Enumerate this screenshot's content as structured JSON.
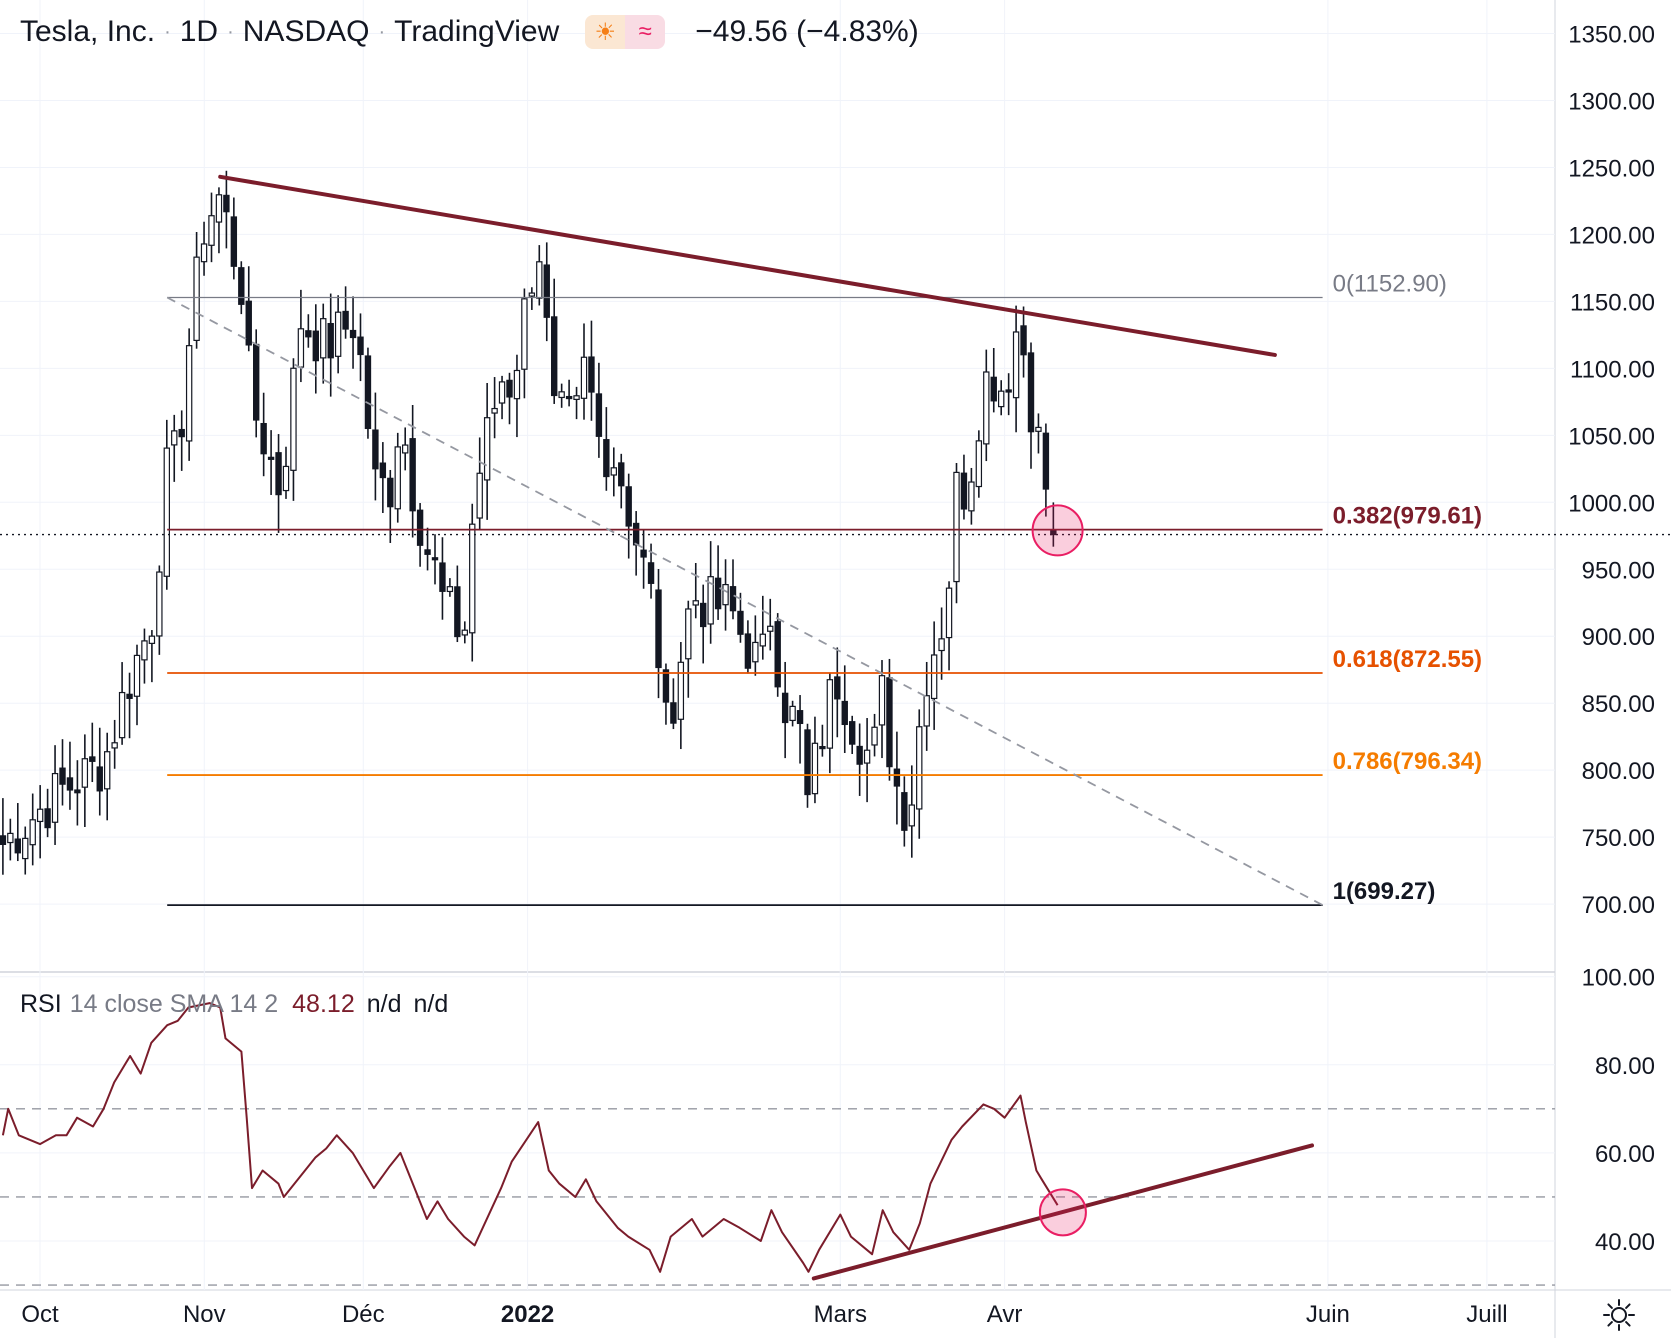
{
  "header": {
    "symbol": "Tesla, Inc.",
    "interval": "1D",
    "exchange": "NASDAQ",
    "source": "TradingView",
    "badge_icons": [
      "sun-icon",
      "wave-icon"
    ],
    "change": "−49.56 (−4.83%)"
  },
  "rsi": {
    "label": "RSI",
    "params": "14 close SMA 14 2",
    "value": "48.12",
    "na1": "n/d",
    "na2": "n/d"
  },
  "colors": {
    "candle": "#131722",
    "trendline": "#7b1d2b",
    "fib_0": "#787b86",
    "fib_382": "#7b1d2b",
    "fib_618": "#e65100",
    "fib_786": "#f57c00",
    "fib_1": "#131722",
    "highlight": "#e91e63",
    "dashed": "#9598a1"
  },
  "chart_data": [
    {
      "type": "candlestick",
      "y_axis": {
        "min": 650,
        "max": 1380,
        "ticks": [
          "700.00",
          "750.00",
          "800.00",
          "850.00",
          "900.00",
          "950.00",
          "1000.00",
          "1050.00",
          "1100.00",
          "1150.00",
          "1200.00",
          "1250.00",
          "1300.00",
          "1350.00"
        ],
        "position": "right"
      },
      "x_axis": {
        "labels": [
          "Oct",
          "Nov",
          "Déc",
          "2022",
          "Mars",
          "Avr",
          "Juin",
          "Juill"
        ],
        "label_dates": [
          "2021-10-01",
          "2021-11-01",
          "2021-12-01",
          "2022-01-01",
          "2022-03-01",
          "2022-04-01",
          "2022-06-01",
          "2022-07-01"
        ]
      },
      "last_close": 975.9,
      "anchors": [
        [
          "2021-09-24",
          745
        ],
        [
          "2021-10-05",
          785
        ],
        [
          "2021-10-13",
          805
        ],
        [
          "2021-10-18",
          870
        ],
        [
          "2021-10-22",
          910
        ],
        [
          "2021-10-25",
          1024
        ],
        [
          "2021-10-27",
          1037
        ],
        [
          "2021-10-29",
          1115
        ],
        [
          "2021-11-01",
          1208
        ],
        [
          "2021-11-04",
          1229
        ],
        [
          "2021-11-08",
          1162
        ],
        [
          "2021-11-10",
          1067
        ],
        [
          "2021-11-11",
          1063
        ],
        [
          "2021-11-15",
          1013
        ],
        [
          "2021-11-17",
          1054
        ],
        [
          "2021-11-19",
          1137
        ],
        [
          "2021-11-24",
          1116
        ],
        [
          "2021-11-29",
          1136
        ],
        [
          "2021-12-01",
          1095
        ],
        [
          "2021-12-03",
          1014
        ],
        [
          "2021-12-06",
          1010
        ],
        [
          "2021-12-08",
          1068
        ],
        [
          "2021-12-10",
          1017
        ],
        [
          "2021-12-13",
          966
        ],
        [
          "2021-12-14",
          958
        ],
        [
          "2021-12-16",
          926
        ],
        [
          "2021-12-20",
          899
        ],
        [
          "2021-12-22",
          1008
        ],
        [
          "2021-12-27",
          1093
        ],
        [
          "2021-12-29",
          1088
        ],
        [
          "2022-01-03",
          1199
        ],
        [
          "2022-01-06",
          1064
        ],
        [
          "2022-01-10",
          1058
        ],
        [
          "2022-01-12",
          1106
        ],
        [
          "2022-01-14",
          1049
        ],
        [
          "2022-01-18",
          1030
        ],
        [
          "2022-01-20",
          996
        ],
        [
          "2022-01-25",
          918
        ],
        [
          "2022-01-27",
          829
        ],
        [
          "2022-01-28",
          846
        ],
        [
          "2022-02-01",
          931
        ],
        [
          "2022-02-04",
          923
        ],
        [
          "2022-02-08",
          922
        ],
        [
          "2022-02-10",
          904
        ],
        [
          "2022-02-14",
          875
        ],
        [
          "2022-02-16",
          923
        ],
        [
          "2022-02-18",
          856
        ],
        [
          "2022-02-22",
          821
        ],
        [
          "2022-02-23",
          764
        ],
        [
          "2022-02-24",
          800
        ],
        [
          "2022-02-28",
          870
        ],
        [
          "2022-03-01",
          865
        ],
        [
          "2022-03-03",
          840
        ],
        [
          "2022-03-07",
          805
        ],
        [
          "2022-03-09",
          859
        ],
        [
          "2022-03-11",
          795
        ],
        [
          "2022-03-14",
          766
        ],
        [
          "2022-03-15",
          802
        ],
        [
          "2022-03-17",
          871
        ],
        [
          "2022-03-21",
          921
        ],
        [
          "2022-03-23",
          1013
        ],
        [
          "2022-03-25",
          1010
        ],
        [
          "2022-03-28",
          1091
        ],
        [
          "2022-03-30",
          1094
        ],
        [
          "2022-04-01",
          1084
        ],
        [
          "2022-04-04",
          1145
        ],
        [
          "2022-04-05",
          1091
        ],
        [
          "2022-04-07",
          1057
        ],
        [
          "2022-04-08",
          1025
        ],
        [
          "2022-04-11",
          975.9
        ]
      ],
      "fibonacci": [
        {
          "level": "0",
          "price": 1152.9,
          "label": "0(1152.90)"
        },
        {
          "level": "0.382",
          "price": 979.61,
          "label": "0.382(979.61)"
        },
        {
          "level": "0.618",
          "price": 872.55,
          "label": "0.618(872.55)"
        },
        {
          "level": "0.786",
          "price": 796.34,
          "label": "0.786(796.34)"
        },
        {
          "level": "1",
          "price": 699.27,
          "label": "1(699.27)"
        }
      ],
      "fib_range": [
        "2021-10-25",
        "2022-05-31"
      ],
      "trendline": {
        "from": [
          "2021-11-04",
          1243
        ],
        "to": [
          "2022-05-22",
          1110
        ]
      },
      "dashed_diagonal": {
        "from": [
          "2021-10-25",
          1152.9
        ],
        "to": [
          "2022-05-31",
          699.27
        ]
      },
      "highlight": {
        "date": "2022-04-11",
        "price": 979
      }
    },
    {
      "type": "line",
      "y_axis": {
        "min": 25,
        "max": 102,
        "ticks": [
          "40.00",
          "60.00",
          "80.00",
          "100.00"
        ],
        "position": "right"
      },
      "bands": [
        70,
        50,
        30
      ],
      "points": [
        [
          "2021-09-24",
          64
        ],
        [
          "2021-09-25",
          70
        ],
        [
          "2021-09-27",
          64
        ],
        [
          "2021-09-29",
          63
        ],
        [
          "2021-10-01",
          62
        ],
        [
          "2021-10-04",
          64
        ],
        [
          "2021-10-06",
          64
        ],
        [
          "2021-10-08",
          68
        ],
        [
          "2021-10-11",
          66
        ],
        [
          "2021-10-13",
          70
        ],
        [
          "2021-10-15",
          76
        ],
        [
          "2021-10-18",
          82
        ],
        [
          "2021-10-20",
          78
        ],
        [
          "2021-10-22",
          85
        ],
        [
          "2021-10-25",
          89
        ],
        [
          "2021-10-27",
          90
        ],
        [
          "2021-10-29",
          93
        ],
        [
          "2021-11-02",
          94
        ],
        [
          "2021-11-04",
          93
        ],
        [
          "2021-11-05",
          86
        ],
        [
          "2021-11-08",
          83
        ],
        [
          "2021-11-09",
          68
        ],
        [
          "2021-11-10",
          52
        ],
        [
          "2021-11-12",
          56
        ],
        [
          "2021-11-15",
          53
        ],
        [
          "2021-11-16",
          50
        ],
        [
          "2021-11-18",
          53
        ],
        [
          "2021-11-22",
          59
        ],
        [
          "2021-11-24",
          61
        ],
        [
          "2021-11-26",
          64
        ],
        [
          "2021-11-29",
          60
        ],
        [
          "2021-12-01",
          56
        ],
        [
          "2021-12-03",
          52
        ],
        [
          "2021-12-06",
          57
        ],
        [
          "2021-12-08",
          60
        ],
        [
          "2021-12-10",
          54
        ],
        [
          "2021-12-13",
          45
        ],
        [
          "2021-12-15",
          49
        ],
        [
          "2021-12-17",
          45
        ],
        [
          "2021-12-20",
          41
        ],
        [
          "2021-12-22",
          39
        ],
        [
          "2021-12-27",
          52
        ],
        [
          "2021-12-29",
          58
        ],
        [
          "2022-01-03",
          67
        ],
        [
          "2022-01-05",
          56
        ],
        [
          "2022-01-07",
          53
        ],
        [
          "2022-01-10",
          50
        ],
        [
          "2022-01-12",
          54
        ],
        [
          "2022-01-14",
          49
        ],
        [
          "2022-01-18",
          43
        ],
        [
          "2022-01-20",
          41
        ],
        [
          "2022-01-24",
          38
        ],
        [
          "2022-01-26",
          33
        ],
        [
          "2022-01-28",
          41
        ],
        [
          "2022-02-01",
          45
        ],
        [
          "2022-02-03",
          41
        ],
        [
          "2022-02-07",
          45
        ],
        [
          "2022-02-10",
          43
        ],
        [
          "2022-02-14",
          40
        ],
        [
          "2022-02-16",
          47
        ],
        [
          "2022-02-18",
          42
        ],
        [
          "2022-02-22",
          35
        ],
        [
          "2022-02-23",
          33
        ],
        [
          "2022-02-25",
          38
        ],
        [
          "2022-03-01",
          46
        ],
        [
          "2022-03-03",
          41
        ],
        [
          "2022-03-07",
          37
        ],
        [
          "2022-03-09",
          47
        ],
        [
          "2022-03-11",
          42
        ],
        [
          "2022-03-14",
          38
        ],
        [
          "2022-03-16",
          44
        ],
        [
          "2022-03-18",
          53
        ],
        [
          "2022-03-22",
          63
        ],
        [
          "2022-03-24",
          66
        ],
        [
          "2022-03-28",
          71
        ],
        [
          "2022-03-30",
          70
        ],
        [
          "2022-04-01",
          68
        ],
        [
          "2022-04-04",
          73
        ],
        [
          "2022-04-05",
          67
        ],
        [
          "2022-04-07",
          56
        ],
        [
          "2022-04-08",
          54
        ],
        [
          "2022-04-11",
          48.12
        ]
      ],
      "trendline": {
        "from": [
          "2022-02-24",
          31.5
        ],
        "to": [
          "2022-05-29",
          61.7
        ]
      },
      "highlight": {
        "date": "2022-04-12",
        "value": 46.5
      }
    }
  ]
}
